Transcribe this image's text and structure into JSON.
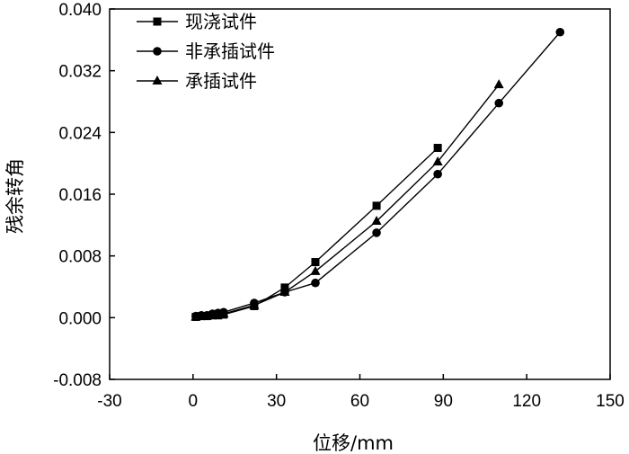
{
  "chart_data": {
    "type": "line",
    "xlabel": "位移/mm",
    "ylabel": "残余转角",
    "xlim": [
      -30,
      150
    ],
    "ylim": [
      -0.008,
      0.04
    ],
    "xticks": [
      -30,
      0,
      30,
      60,
      90,
      120,
      150
    ],
    "yticks": [
      -0.008,
      0.0,
      0.008,
      0.016,
      0.024,
      0.032,
      0.04
    ],
    "xtick_labels": [
      "-30",
      "0",
      "30",
      "60",
      "90",
      "120",
      "150"
    ],
    "ytick_labels": [
      "-0.008",
      "0.000",
      "0.008",
      "0.016",
      "0.024",
      "0.032",
      "0.040"
    ],
    "grid": false,
    "legend_position": "top-left",
    "series": [
      {
        "name": "现浇试件",
        "marker": "square",
        "x": [
          1,
          3,
          5,
          7,
          9,
          11,
          22,
          33,
          44,
          66,
          88
        ],
        "y": [
          0.0001,
          0.0002,
          0.0002,
          0.0003,
          0.0003,
          0.0004,
          0.0015,
          0.0039,
          0.0072,
          0.0145,
          0.022
        ]
      },
      {
        "name": "非承插试件",
        "marker": "circle",
        "x": [
          1,
          3,
          5,
          7,
          9,
          11,
          22,
          33,
          44,
          66,
          88,
          110,
          132
        ],
        "y": [
          0.0002,
          0.0003,
          0.0003,
          0.0005,
          0.0006,
          0.0007,
          0.0019,
          0.0033,
          0.0045,
          0.011,
          0.0186,
          0.0278,
          0.037
        ]
      },
      {
        "name": "承插试件",
        "marker": "triangle",
        "x": [
          1,
          3,
          5,
          7,
          9,
          11,
          22,
          33,
          44,
          66,
          88,
          110
        ],
        "y": [
          0.0001,
          0.0002,
          0.0002,
          0.0003,
          0.0004,
          0.0005,
          0.0016,
          0.0033,
          0.006,
          0.0125,
          0.0202,
          0.0302
        ]
      }
    ]
  }
}
